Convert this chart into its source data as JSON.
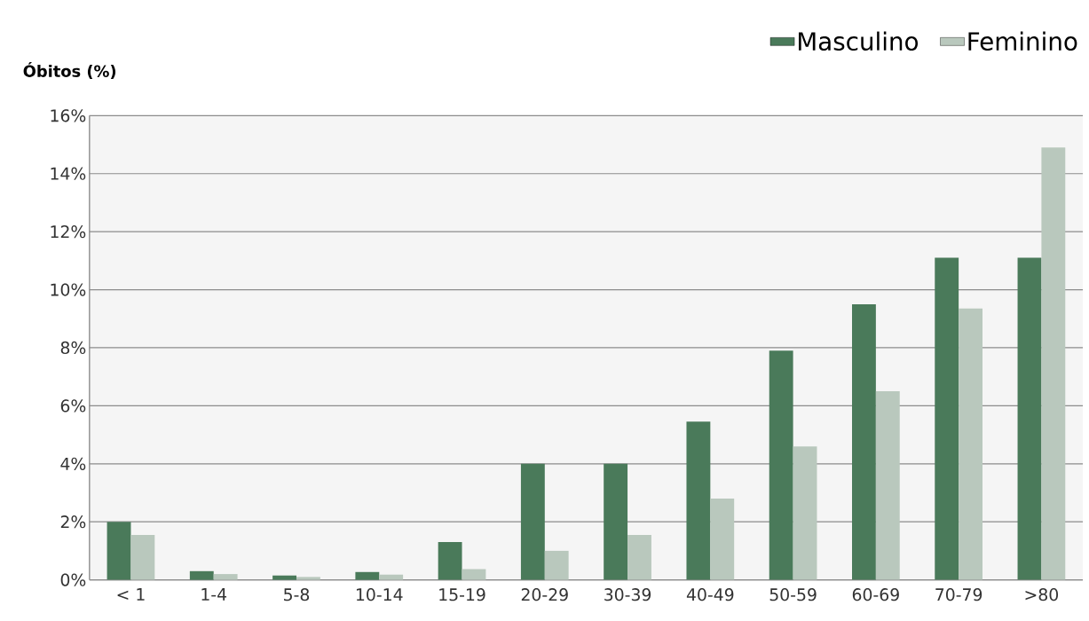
{
  "chart_data": {
    "type": "bar",
    "ylabel": "**Óbitos (%)**",
    "categories": [
      "< 1",
      "1-4",
      "5-8",
      "10-14",
      "15-19",
      "20-29",
      "30-39",
      "40-49",
      "50-59",
      "60-69",
      "70-79",
      ">80"
    ],
    "series": [
      {
        "name": "Masculino",
        "color": "#4a7a5a",
        "values": [
          2.0,
          0.3,
          0.15,
          0.27,
          1.3,
          4.0,
          4.0,
          5.45,
          7.9,
          9.5,
          11.1,
          11.1
        ]
      },
      {
        "name": "Feminino",
        "color": "#b9c8bd",
        "values": [
          1.55,
          0.2,
          0.1,
          0.18,
          0.37,
          1.0,
          1.55,
          2.8,
          4.6,
          6.5,
          9.35,
          14.9
        ]
      }
    ],
    "ylim": [
      0,
      16
    ],
    "yticks": [
      {
        "value": 0,
        "label": "0%"
      },
      {
        "value": 2,
        "label": "2%"
      },
      {
        "value": 4,
        "label": "4%"
      },
      {
        "value": 6,
        "label": "6%"
      },
      {
        "value": 8,
        "label": "8%"
      },
      {
        "value": 10,
        "label": "10%"
      },
      {
        "value": 12,
        "label": "12%"
      },
      {
        "value": 14,
        "label": "14%"
      },
      {
        "value": 16,
        "label": "16%"
      }
    ],
    "grid": "y",
    "legend": "top right"
  }
}
